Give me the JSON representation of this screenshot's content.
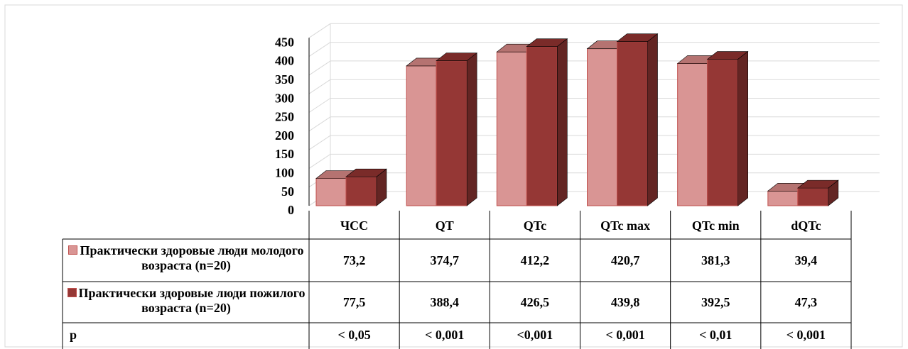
{
  "chart_data": {
    "type": "bar",
    "categories": [
      "ЧСС",
      "QT",
      "QTc",
      "QTc max",
      "QTc min",
      "dQTc"
    ],
    "series": [
      {
        "name": "Практически здоровые люди молодого возраста (n=20)",
        "color": "#d99594",
        "values": [
          73.2,
          374.7,
          412.2,
          420.7,
          381.3,
          39.4
        ],
        "value_labels": [
          "73,2",
          "374,7",
          "412,2",
          "420,7",
          "381,3",
          "39,4"
        ]
      },
      {
        "name": "Практически здоровые люди пожилого возраста (n=20)",
        "color": "#953735",
        "values": [
          77.5,
          388.4,
          426.5,
          439.8,
          392.5,
          47.3
        ],
        "value_labels": [
          "77,5",
          "388,4",
          "426,5",
          "439,8",
          "392,5",
          "47,3"
        ]
      }
    ],
    "p_row": {
      "label": "p",
      "values": [
        "< 0,05",
        "< 0,001",
        "<0,001",
        "< 0,001",
        "< 0,01",
        "< 0,001"
      ]
    },
    "ylim": [
      0,
      450
    ],
    "yticks": [
      0,
      50,
      100,
      150,
      200,
      250,
      300,
      350,
      400,
      450
    ],
    "grid": true
  }
}
